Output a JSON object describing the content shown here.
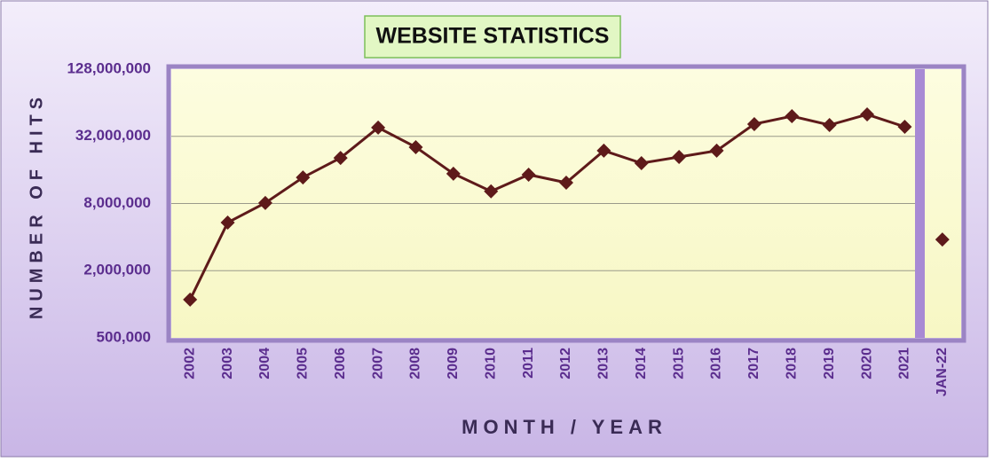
{
  "chart_data": {
    "type": "line",
    "title": "WEBSITE STATISTICS",
    "x_label": "MONTH / YEAR",
    "y_label": "NUMBER OF HITS",
    "categories": [
      "2002",
      "2003",
      "2004",
      "2005",
      "2006",
      "2007",
      "2008",
      "2009",
      "2010",
      "2011",
      "2012",
      "2013",
      "2014",
      "2015",
      "2016",
      "2017",
      "2018",
      "2019",
      "2020",
      "2021",
      "JAN-22"
    ],
    "values": [
      1100000,
      5400000,
      8100000,
      13700000,
      20500000,
      38300000,
      25600000,
      14800000,
      10300000,
      14500000,
      12300000,
      23800000,
      18400000,
      20900000,
      23800000,
      41200000,
      48500000,
      40400000,
      50300000,
      39000000,
      3800000
    ],
    "color": "#5e1a1a",
    "yscale": "log",
    "ylim": [
      500000,
      128000000
    ],
    "yticks": [
      {
        "value": 500000,
        "label": "500,000"
      },
      {
        "value": 2000000,
        "label": "2,000,000"
      },
      {
        "value": 8000000,
        "label": "8,000,000"
      },
      {
        "value": 32000000,
        "label": "32,000,000"
      },
      {
        "value": 128000000,
        "label": "128,000,000"
      }
    ],
    "grid": true
  }
}
